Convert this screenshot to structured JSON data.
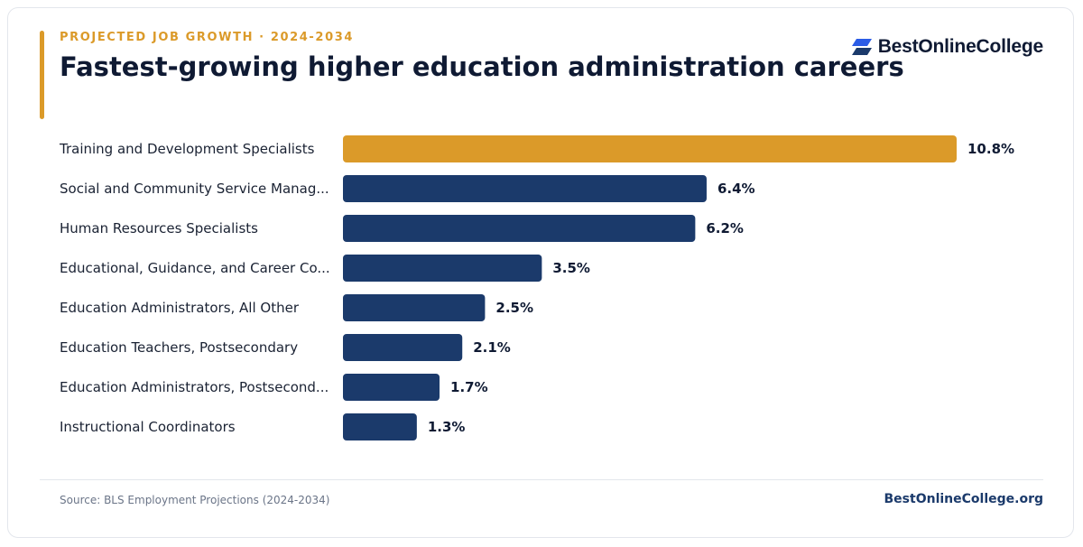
{
  "header": {
    "eyebrow": "PROJECTED JOB GROWTH · 2024-2034",
    "title": "Fastest-growing higher education administration careers",
    "logo_text": "BestOnlineCollege"
  },
  "footer": {
    "source": "Source: BLS Employment Projections (2024-2034)",
    "site": "BestOnlineCollege.org"
  },
  "colors": {
    "highlight": "#db9a29",
    "bar": "#1b3a6b",
    "label_text": "#1a2233",
    "value_text": "#0f1a33"
  },
  "chart_data": {
    "type": "bar",
    "orientation": "horizontal",
    "categories": [
      "Training and Development Specialists",
      "Social and Community Service Manag...",
      "Human Resources Specialists",
      "Educational, Guidance, and Career Co...",
      "Education Administrators, All Other",
      "Education Teachers, Postsecondary",
      "Education Administrators, Postsecond...",
      "Instructional Coordinators"
    ],
    "values": [
      10.8,
      6.4,
      6.2,
      3.5,
      2.5,
      2.1,
      1.7,
      1.3
    ],
    "value_labels": [
      "10.8%",
      "6.4%",
      "6.2%",
      "3.5%",
      "2.5%",
      "2.1%",
      "1.7%",
      "1.3%"
    ],
    "highlight_index": 0,
    "xlim": [
      0,
      10.8
    ],
    "grid": false,
    "legend": "none"
  }
}
